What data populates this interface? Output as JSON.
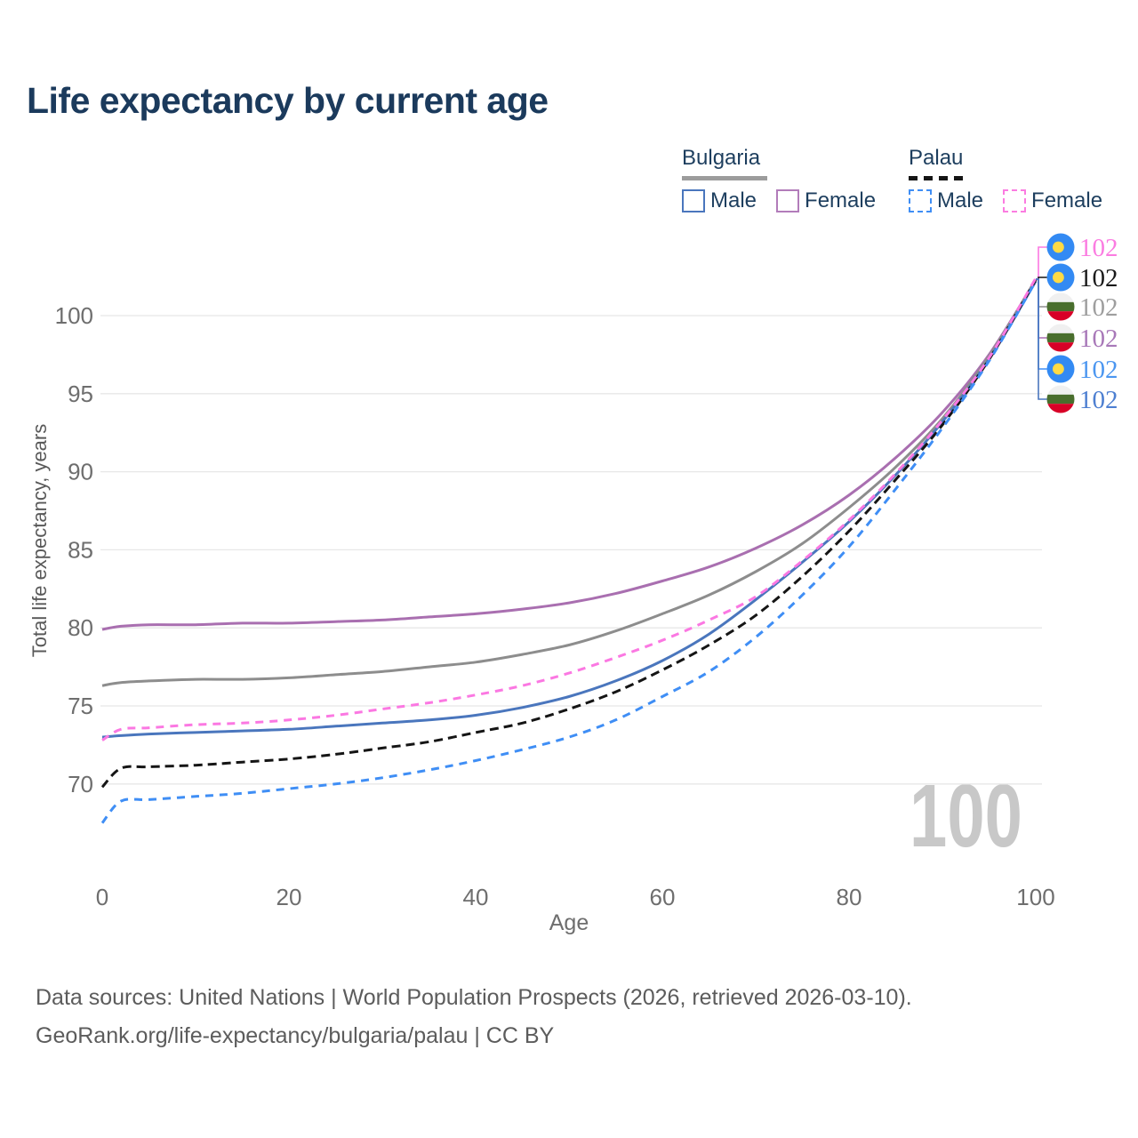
{
  "title": "Life expectancy by current age",
  "watermark": "100",
  "footer": {
    "line1": "Data sources: United Nations | World Population Prospects (2026, retrieved 2026-03-10).",
    "line2": "GeoRank.org/life-expectancy/bulgaria/palau | CC BY"
  },
  "legend": {
    "groups": [
      {
        "country": "Bulgaria",
        "line": "solid",
        "underline_color": "#9c9c9c",
        "items": [
          {
            "label": "Male",
            "color": "#4a76bd",
            "line": "solid"
          },
          {
            "label": "Female",
            "color": "#b27cba",
            "line": "solid"
          }
        ]
      },
      {
        "country": "Palau",
        "line": "dashed",
        "underline_color": "#151515",
        "items": [
          {
            "label": "Male",
            "color": "#3f8ef5",
            "line": "dashed"
          },
          {
            "label": "Female",
            "color": "#fb7ce1",
            "line": "dashed"
          }
        ]
      }
    ]
  },
  "chart_data": {
    "type": "line",
    "title": "Life expectancy by current age",
    "xlabel": "Age",
    "ylabel": "Total life expectancy, years",
    "xlim": [
      0,
      100
    ],
    "ylim_displayed": [
      66,
      103
    ],
    "xticks": [
      0,
      20,
      40,
      60,
      80,
      100
    ],
    "yticks": [
      70,
      75,
      80,
      85,
      90,
      95,
      100
    ],
    "grid": "horizontal",
    "gridline_color": "#e7e7e7",
    "x": [
      0,
      2,
      5,
      10,
      15,
      20,
      25,
      30,
      35,
      40,
      45,
      50,
      55,
      60,
      65,
      70,
      75,
      80,
      85,
      90,
      95,
      100
    ],
    "series": [
      {
        "id": "bulgaria_female",
        "name": "Bulgaria Female",
        "country": "Bulgaria",
        "sex": "female",
        "line": "solid",
        "color": "#a96fb0",
        "label_color": "#a878b8",
        "flag": "bulgaria",
        "end_label": "102",
        "values": [
          79.9,
          80.1,
          80.2,
          80.2,
          80.3,
          80.3,
          80.4,
          80.5,
          80.7,
          80.9,
          81.2,
          81.6,
          82.2,
          83.0,
          83.9,
          85.1,
          86.6,
          88.5,
          90.9,
          93.8,
          97.5,
          102.3
        ]
      },
      {
        "id": "bulgaria_all",
        "name": "Bulgaria Total",
        "country": "Bulgaria",
        "sex": "total",
        "line": "solid",
        "color": "#8d8d8d",
        "label_color": "#9e9e9e",
        "flag": "bulgaria",
        "end_label": "102",
        "values": [
          76.3,
          76.5,
          76.6,
          76.7,
          76.7,
          76.8,
          77.0,
          77.2,
          77.5,
          77.8,
          78.3,
          78.9,
          79.8,
          80.9,
          82.1,
          83.6,
          85.4,
          87.7,
          90.3,
          93.4,
          97.4,
          102.3
        ]
      },
      {
        "id": "bulgaria_male",
        "name": "Bulgaria Male",
        "country": "Bulgaria",
        "sex": "male",
        "line": "solid",
        "color": "#4a76bd",
        "label_color": "#4d7fd1",
        "flag": "bulgaria",
        "end_label": "102",
        "values": [
          73.0,
          73.1,
          73.2,
          73.3,
          73.4,
          73.5,
          73.7,
          73.9,
          74.1,
          74.4,
          74.9,
          75.6,
          76.6,
          77.9,
          79.6,
          81.8,
          84.2,
          86.8,
          89.8,
          93.2,
          97.2,
          102.2
        ]
      },
      {
        "id": "palau_all",
        "name": "Palau Total",
        "country": "Palau",
        "sex": "total",
        "line": "dashed",
        "color": "#151515",
        "label_color": "#1a1a1a",
        "flag": "palau",
        "end_label": "102",
        "values": [
          69.8,
          71.0,
          71.1,
          71.2,
          71.4,
          71.6,
          71.9,
          72.3,
          72.7,
          73.3,
          73.9,
          74.8,
          75.9,
          77.3,
          78.9,
          80.8,
          83.3,
          86.2,
          89.5,
          93.0,
          97.2,
          102.3
        ]
      },
      {
        "id": "palau_male",
        "name": "Palau Male",
        "country": "Palau",
        "sex": "male",
        "line": "dashed",
        "color": "#3f8ef5",
        "label_color": "#4b96f0",
        "flag": "palau",
        "end_label": "102",
        "values": [
          67.5,
          68.9,
          69.0,
          69.2,
          69.4,
          69.7,
          70.0,
          70.4,
          70.9,
          71.5,
          72.2,
          73.0,
          74.1,
          75.6,
          77.2,
          79.4,
          82.1,
          85.2,
          88.9,
          92.8,
          97.1,
          102.2
        ]
      },
      {
        "id": "palau_female",
        "name": "Palau Female",
        "country": "Palau",
        "sex": "female",
        "line": "dashed",
        "color": "#fb78e2",
        "label_color": "#fb7ce1",
        "flag": "palau",
        "end_label": "102",
        "values": [
          72.8,
          73.5,
          73.6,
          73.8,
          73.9,
          74.1,
          74.4,
          74.8,
          75.2,
          75.7,
          76.3,
          77.1,
          78.1,
          79.2,
          80.5,
          82.0,
          84.3,
          86.9,
          89.9,
          93.3,
          97.3,
          102.4
        ]
      }
    ],
    "end_label_rows": [
      "palau_female",
      "palau_all",
      "bulgaria_all",
      "bulgaria_female",
      "palau_male",
      "bulgaria_male"
    ],
    "legend_position": "top-right"
  },
  "flag_colors": {
    "palau_blue": "#338AF3",
    "palau_yellow": "#FFDA44",
    "bulgaria_white": "#F0F0F0",
    "bulgaria_green": "#496E2D",
    "bulgaria_red": "#D80027"
  }
}
